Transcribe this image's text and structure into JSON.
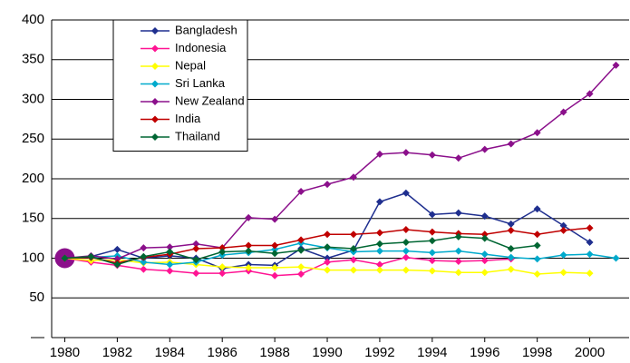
{
  "chart_data": {
    "type": "line",
    "x": [
      1980,
      1981,
      1982,
      1983,
      1984,
      1985,
      1986,
      1987,
      1988,
      1989,
      1990,
      1991,
      1992,
      1993,
      1994,
      1995,
      1996,
      1997,
      1998,
      1999,
      2000,
      2001
    ],
    "series": [
      {
        "name": "Bangladesh",
        "color": "#1f2f8f",
        "values": [
          100,
          102,
          111,
          100,
          103,
          100,
          87,
          92,
          91,
          112,
          100,
          110,
          171,
          182,
          155,
          157,
          153,
          143,
          162,
          141,
          120,
          null
        ]
      },
      {
        "name": "Indonesia",
        "color": "#ff1493",
        "values": [
          100,
          95,
          91,
          86,
          84,
          81,
          81,
          84,
          78,
          80,
          95,
          98,
          92,
          101,
          97,
          96,
          97,
          99,
          null,
          null,
          null,
          null
        ]
      },
      {
        "name": "Nepal",
        "color": "#ffff00",
        "values": [
          100,
          97,
          98,
          94,
          95,
          92,
          89,
          88,
          88,
          89,
          85,
          85,
          85,
          85,
          84,
          82,
          82,
          86,
          80,
          82,
          81,
          null
        ]
      },
      {
        "name": "Sri Lanka",
        "color": "#00aacc",
        "values": [
          100,
          101,
          103,
          95,
          92,
          95,
          104,
          107,
          111,
          119,
          113,
          108,
          109,
          109,
          107,
          109,
          105,
          101,
          99,
          104,
          105,
          100
        ]
      },
      {
        "name": "New Zealand",
        "color": "#8b108b",
        "values": [
          100,
          103,
          99,
          113,
          114,
          118,
          113,
          151,
          149,
          184,
          193,
          202,
          231,
          233,
          230,
          226,
          237,
          244,
          258,
          284,
          307,
          343
        ]
      },
      {
        "name": "India",
        "color": "#c00000",
        "values": [
          100,
          101,
          94,
          101,
          105,
          112,
          113,
          116,
          116,
          123,
          130,
          130,
          132,
          136,
          133,
          131,
          130,
          135,
          130,
          135,
          138,
          null
        ]
      },
      {
        "name": "Thailand",
        "color": "#006633",
        "values": [
          100,
          102,
          92,
          102,
          108,
          98,
          108,
          109,
          106,
          110,
          114,
          112,
          118,
          120,
          122,
          127,
          125,
          112,
          116,
          null,
          null,
          null
        ]
      }
    ],
    "xlim": [
      1979.5,
      2001.5
    ],
    "xticks": [
      1980,
      1982,
      1984,
      1986,
      1988,
      1990,
      1992,
      1994,
      1996,
      1998,
      2000
    ],
    "ylim": [
      0,
      400
    ],
    "yticks": [
      {
        "value": 0,
        "label": "—"
      },
      50,
      100,
      150,
      200,
      250,
      300,
      350,
      400
    ],
    "grid": true,
    "legend": "upper left"
  }
}
